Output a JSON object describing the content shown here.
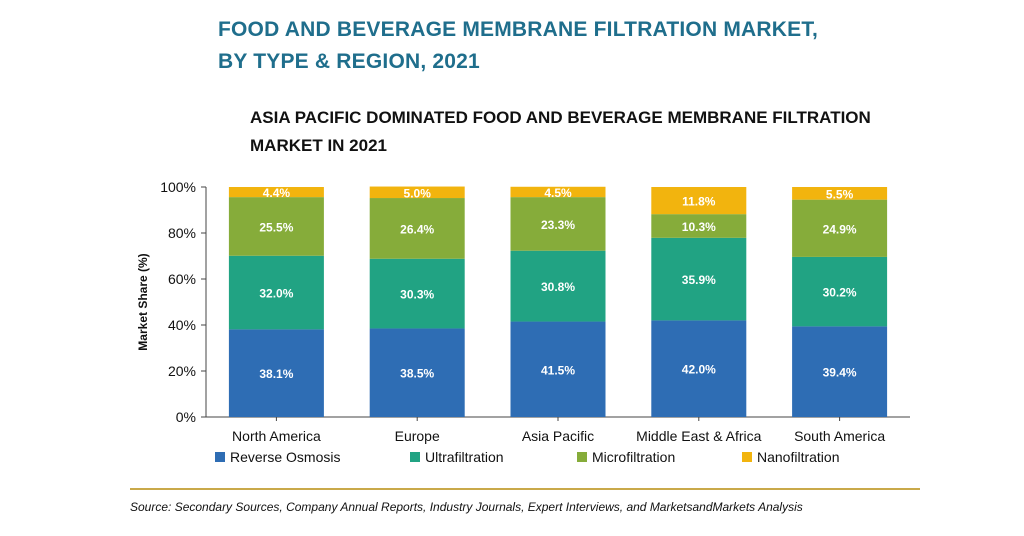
{
  "header": {
    "title_line1": "FOOD AND BEVERAGE MEMBRANE FILTRATION MARKET,",
    "title_line2": "BY TYPE & REGION, 2021",
    "subtitle_line1": "ASIA PACIFIC DOMINATED FOOD AND BEVERAGE MEMBRANE FILTRATION",
    "subtitle_line2": "MARKET IN 2021"
  },
  "chart_data": {
    "type": "bar",
    "stacked": true,
    "ylabel": "Market Share (%)",
    "ylim": [
      0,
      100
    ],
    "yticks": [
      "0%",
      "20%",
      "40%",
      "60%",
      "80%",
      "100%"
    ],
    "categories": [
      "North America",
      "Europe",
      "Asia Pacific",
      "Middle East & Africa",
      "South America"
    ],
    "series": [
      {
        "name": "Reverse Osmosis",
        "color": "#2e6db4",
        "values": [
          38.1,
          38.5,
          41.5,
          42.0,
          39.4
        ],
        "labels": [
          "38.1%",
          "38.5%",
          "41.5%",
          "42.0%",
          "39.4%"
        ]
      },
      {
        "name": "Ultrafiltration",
        "color": "#21a383",
        "values": [
          32.0,
          30.3,
          30.8,
          35.9,
          30.2
        ],
        "labels": [
          "32.0%",
          "30.3%",
          "30.8%",
          "35.9%",
          "30.2%"
        ]
      },
      {
        "name": "Microfiltration",
        "color": "#86ac3a",
        "values": [
          25.5,
          26.4,
          23.3,
          10.3,
          24.9
        ],
        "labels": [
          "25.5%",
          "26.4%",
          "23.3%",
          "10.3%",
          "24.9%"
        ]
      },
      {
        "name": "Nanofiltration",
        "color": "#f2b40e",
        "values": [
          4.4,
          5.0,
          4.5,
          11.8,
          5.5
        ],
        "labels": [
          "4.4%",
          "5.0%",
          "4.5%",
          "11.8%",
          "5.5%"
        ]
      }
    ],
    "legend_position": "bottom"
  },
  "footer": {
    "source": "Source: Secondary Sources, Company Annual Reports, Industry Journals, Expert Interviews, and MarketsandMarkets Analysis"
  }
}
